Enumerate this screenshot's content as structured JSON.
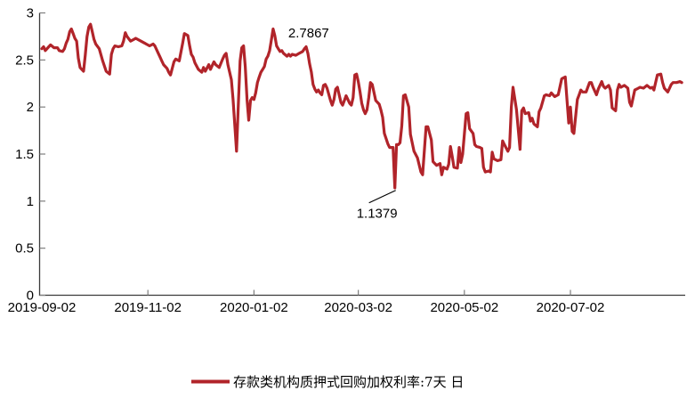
{
  "chart_data": {
    "type": "line",
    "title": "",
    "xlabel": "",
    "ylabel": "",
    "grid": false,
    "legend_position": "bottom-center",
    "background": "#ffffff",
    "axis_color": "#3b3b3b",
    "tick_color": "#7f7f7f",
    "text_color": "#000000",
    "x_axis": {
      "unit": "days since 2019-09-02",
      "tick_days": [
        0,
        61,
        122,
        182,
        243,
        304
      ],
      "tick_labels": [
        "2019-09-02",
        "2019-11-02",
        "2020-01-02",
        "2020-03-02",
        "2020-05-02",
        "2020-07-02"
      ],
      "range_days": [
        0,
        368
      ]
    },
    "y_axis": {
      "min": 0,
      "max": 3,
      "step": 0.5,
      "tick_labels": [
        "0",
        "0.5",
        "1",
        "1.5",
        "2",
        "2.5",
        "3"
      ]
    },
    "series": [
      {
        "name": "存款类机构质押式回购加权利率:7天 日",
        "color": "#B1242A",
        "stroke_width": 3.2,
        "points": [
          [
            0,
            2.62
          ],
          [
            1,
            2.64
          ],
          [
            2,
            2.6
          ],
          [
            4,
            2.64
          ],
          [
            5,
            2.66
          ],
          [
            7,
            2.63
          ],
          [
            9,
            2.63
          ],
          [
            10,
            2.6
          ],
          [
            12,
            2.59
          ],
          [
            13,
            2.62
          ],
          [
            14,
            2.68
          ],
          [
            15,
            2.72
          ],
          [
            16,
            2.8
          ],
          [
            17,
            2.83
          ],
          [
            18,
            2.78
          ],
          [
            19,
            2.73
          ],
          [
            20,
            2.7
          ],
          [
            21,
            2.52
          ],
          [
            22,
            2.42
          ],
          [
            23,
            2.4
          ],
          [
            24,
            2.38
          ],
          [
            25,
            2.55
          ],
          [
            26,
            2.75
          ],
          [
            27,
            2.85
          ],
          [
            28,
            2.88
          ],
          [
            29,
            2.8
          ],
          [
            30,
            2.72
          ],
          [
            31,
            2.67
          ],
          [
            33,
            2.62
          ],
          [
            35,
            2.49
          ],
          [
            37,
            2.38
          ],
          [
            39,
            2.35
          ],
          [
            40,
            2.56
          ],
          [
            41,
            2.62
          ],
          [
            42,
            2.65
          ],
          [
            44,
            2.64
          ],
          [
            46,
            2.65
          ],
          [
            47,
            2.7
          ],
          [
            48,
            2.79
          ],
          [
            49,
            2.75
          ],
          [
            51,
            2.7
          ],
          [
            53,
            2.72
          ],
          [
            54,
            2.73
          ],
          [
            57,
            2.7
          ],
          [
            59,
            2.68
          ],
          [
            60,
            2.67
          ],
          [
            62,
            2.65
          ],
          [
            64,
            2.67
          ],
          [
            65,
            2.65
          ],
          [
            67,
            2.57
          ],
          [
            68,
            2.53
          ],
          [
            69,
            2.49
          ],
          [
            70,
            2.45
          ],
          [
            72,
            2.41
          ],
          [
            73,
            2.37
          ],
          [
            74,
            2.34
          ],
          [
            76,
            2.48
          ],
          [
            77,
            2.51
          ],
          [
            79,
            2.49
          ],
          [
            81,
            2.68
          ],
          [
            82,
            2.78
          ],
          [
            84,
            2.76
          ],
          [
            85,
            2.65
          ],
          [
            86,
            2.56
          ],
          [
            87,
            2.53
          ],
          [
            88,
            2.47
          ],
          [
            90,
            2.4
          ],
          [
            92,
            2.37
          ],
          [
            93,
            2.42
          ],
          [
            94,
            2.38
          ],
          [
            96,
            2.45
          ],
          [
            97,
            2.4
          ],
          [
            99,
            2.48
          ],
          [
            100,
            2.45
          ],
          [
            102,
            2.42
          ],
          [
            104,
            2.51
          ],
          [
            105,
            2.55
          ],
          [
            106,
            2.57
          ],
          [
            107,
            2.45
          ],
          [
            109,
            2.29
          ],
          [
            110,
            2.08
          ],
          [
            111,
            1.8
          ],
          [
            112,
            1.53
          ],
          [
            113,
            2.02
          ],
          [
            114,
            2.49
          ],
          [
            115,
            2.63
          ],
          [
            116,
            2.65
          ],
          [
            117,
            2.43
          ],
          [
            118,
            2.08
          ],
          [
            119,
            1.86
          ],
          [
            120,
            2.07
          ],
          [
            121,
            2.1
          ],
          [
            122,
            2.08
          ],
          [
            123,
            2.15
          ],
          [
            124,
            2.26
          ],
          [
            125,
            2.32
          ],
          [
            126,
            2.37
          ],
          [
            127,
            2.4
          ],
          [
            128,
            2.43
          ],
          [
            129,
            2.51
          ],
          [
            130,
            2.54
          ],
          [
            131,
            2.6
          ],
          [
            132,
            2.71
          ],
          [
            133,
            2.83
          ],
          [
            134,
            2.76
          ],
          [
            135,
            2.65
          ],
          [
            136,
            2.62
          ],
          [
            137,
            2.59
          ],
          [
            138,
            2.6
          ],
          [
            139,
            2.57
          ],
          [
            141,
            2.54
          ],
          [
            142,
            2.56
          ],
          [
            143,
            2.54
          ],
          [
            144,
            2.56
          ],
          [
            146,
            2.55
          ],
          [
            148,
            2.57
          ],
          [
            150,
            2.59
          ],
          [
            151,
            2.62
          ],
          [
            152,
            2.64
          ],
          [
            153,
            2.57
          ],
          [
            154,
            2.46
          ],
          [
            155,
            2.37
          ],
          [
            156,
            2.24
          ],
          [
            157,
            2.19
          ],
          [
            158,
            2.16
          ],
          [
            159,
            2.18
          ],
          [
            160,
            2.15
          ],
          [
            161,
            2.13
          ],
          [
            162,
            2.23
          ],
          [
            163,
            2.24
          ],
          [
            164,
            2.2
          ],
          [
            166,
            2.07
          ],
          [
            167,
            2.02
          ],
          [
            168,
            2.08
          ],
          [
            169,
            2.19
          ],
          [
            170,
            2.21
          ],
          [
            171,
            2.13
          ],
          [
            172,
            2.05
          ],
          [
            173,
            2.02
          ],
          [
            174,
            2.07
          ],
          [
            175,
            2.12
          ],
          [
            176,
            2.08
          ],
          [
            177,
            2.04
          ],
          [
            178,
            2.02
          ],
          [
            179,
            2.1
          ],
          [
            180,
            2.34
          ],
          [
            181,
            2.35
          ],
          [
            182,
            2.27
          ],
          [
            183,
            2.16
          ],
          [
            184,
            2.04
          ],
          [
            185,
            1.97
          ],
          [
            186,
            1.93
          ],
          [
            187,
            1.97
          ],
          [
            188,
            2.1
          ],
          [
            189,
            2.26
          ],
          [
            190,
            2.24
          ],
          [
            192,
            2.07
          ],
          [
            194,
            2.03
          ],
          [
            195,
            1.97
          ],
          [
            196,
            1.89
          ],
          [
            197,
            1.72
          ],
          [
            199,
            1.61
          ],
          [
            200,
            1.57
          ],
          [
            202,
            1.57
          ],
          [
            203,
            1.14
          ],
          [
            204,
            1.6
          ],
          [
            205,
            1.6
          ],
          [
            206,
            1.62
          ],
          [
            207,
            1.8
          ],
          [
            208,
            2.12
          ],
          [
            209,
            2.13
          ],
          [
            211,
            2.0
          ],
          [
            212,
            1.71
          ],
          [
            214,
            1.53
          ],
          [
            216,
            1.46
          ],
          [
            218,
            1.31
          ],
          [
            219,
            1.28
          ],
          [
            221,
            1.79
          ],
          [
            222,
            1.79
          ],
          [
            224,
            1.65
          ],
          [
            225,
            1.42
          ],
          [
            227,
            1.38
          ],
          [
            229,
            1.4
          ],
          [
            230,
            1.28
          ],
          [
            231,
            1.36
          ],
          [
            233,
            1.34
          ],
          [
            234,
            1.39
          ],
          [
            235,
            1.58
          ],
          [
            236,
            1.48
          ],
          [
            237,
            1.36
          ],
          [
            239,
            1.35
          ],
          [
            240,
            1.57
          ],
          [
            241,
            1.41
          ],
          [
            242,
            1.5
          ],
          [
            244,
            1.93
          ],
          [
            245,
            1.94
          ],
          [
            246,
            1.77
          ],
          [
            248,
            1.72
          ],
          [
            249,
            1.6
          ],
          [
            250,
            1.58
          ],
          [
            252,
            1.57
          ],
          [
            253,
            1.56
          ],
          [
            254,
            1.36
          ],
          [
            255,
            1.31
          ],
          [
            257,
            1.32
          ],
          [
            258,
            1.31
          ],
          [
            259,
            1.52
          ],
          [
            260,
            1.45
          ],
          [
            262,
            1.43
          ],
          [
            264,
            1.44
          ],
          [
            265,
            1.64
          ],
          [
            266,
            1.6
          ],
          [
            268,
            1.53
          ],
          [
            269,
            1.57
          ],
          [
            270,
            2.0
          ],
          [
            271,
            2.21
          ],
          [
            273,
            1.97
          ],
          [
            275,
            1.55
          ],
          [
            276,
            1.96
          ],
          [
            277,
            1.99
          ],
          [
            278,
            1.93
          ],
          [
            280,
            1.94
          ],
          [
            281,
            1.85
          ],
          [
            282,
            1.88
          ],
          [
            283,
            1.82
          ],
          [
            285,
            1.79
          ],
          [
            286,
            1.95
          ],
          [
            287,
            1.99
          ],
          [
            289,
            2.12
          ],
          [
            290,
            2.13
          ],
          [
            292,
            2.12
          ],
          [
            293,
            2.15
          ],
          [
            295,
            2.11
          ],
          [
            297,
            2.13
          ],
          [
            299,
            2.3
          ],
          [
            300,
            2.31
          ],
          [
            301,
            2.32
          ],
          [
            303,
            1.83
          ],
          [
            304,
            2.0
          ],
          [
            305,
            1.74
          ],
          [
            306,
            1.72
          ],
          [
            308,
            2.08
          ],
          [
            309,
            2.13
          ],
          [
            310,
            2.18
          ],
          [
            311,
            2.16
          ],
          [
            313,
            2.16
          ],
          [
            315,
            2.26
          ],
          [
            316,
            2.26
          ],
          [
            317,
            2.21
          ],
          [
            319,
            2.13
          ],
          [
            320,
            2.19
          ],
          [
            322,
            2.27
          ],
          [
            323,
            2.22
          ],
          [
            324,
            2.2
          ],
          [
            326,
            2.23
          ],
          [
            327,
            2.18
          ],
          [
            328,
            1.99
          ],
          [
            330,
            1.96
          ],
          [
            331,
            2.18
          ],
          [
            332,
            2.24
          ],
          [
            333,
            2.21
          ],
          [
            335,
            2.23
          ],
          [
            337,
            2.2
          ],
          [
            338,
            2.05
          ],
          [
            339,
            2.01
          ],
          [
            341,
            2.18
          ],
          [
            342,
            2.19
          ],
          [
            344,
            2.21
          ],
          [
            346,
            2.2
          ],
          [
            348,
            2.23
          ],
          [
            350,
            2.2
          ],
          [
            351,
            2.21
          ],
          [
            352,
            2.18
          ],
          [
            354,
            2.34
          ],
          [
            356,
            2.35
          ],
          [
            357,
            2.26
          ],
          [
            358,
            2.2
          ],
          [
            360,
            2.16
          ],
          [
            362,
            2.24
          ],
          [
            363,
            2.26
          ],
          [
            365,
            2.26
          ],
          [
            367,
            2.27
          ],
          [
            368,
            2.26
          ]
        ]
      }
    ],
    "annotations": [
      {
        "id": "max",
        "text": "2.7867",
        "day": 133,
        "value": 2.7867
      },
      {
        "id": "min",
        "text": "1.1379",
        "day": 203,
        "value": 1.1379
      }
    ]
  }
}
